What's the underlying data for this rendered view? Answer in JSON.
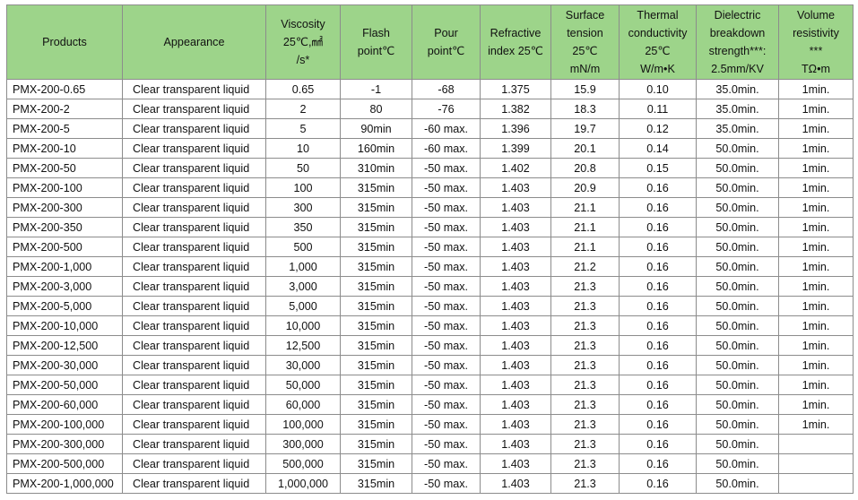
{
  "header_bg": "#9dd48a",
  "columns": [
    {
      "key": "products",
      "lines": [
        "Products"
      ]
    },
    {
      "key": "appearance",
      "lines": [
        "Appearance"
      ]
    },
    {
      "key": "viscosity",
      "lines": [
        "Viscosity",
        "25℃,㎟",
        "/s*"
      ]
    },
    {
      "key": "flash",
      "lines": [
        "Flash",
        "point℃"
      ]
    },
    {
      "key": "pour",
      "lines": [
        "Pour",
        "point℃"
      ]
    },
    {
      "key": "refractive",
      "lines": [
        "Refractive",
        "index 25℃"
      ]
    },
    {
      "key": "surface",
      "lines": [
        "Surface",
        "tension",
        "25℃",
        "mN/m"
      ]
    },
    {
      "key": "thermal",
      "lines": [
        "Thermal",
        "conductivity",
        "25℃",
        "W/m•K"
      ]
    },
    {
      "key": "dielectric",
      "lines": [
        "Dielectric",
        "breakdown",
        "strength***:",
        "2.5mm/KV"
      ]
    },
    {
      "key": "volume",
      "lines": [
        "Volume",
        "resistivity",
        "***",
        "TΩ•m"
      ]
    }
  ],
  "rows": [
    [
      "PMX-200-0.65",
      "Clear transparent liquid",
      "0.65",
      "-1",
      "-68",
      "1.375",
      "15.9",
      "0.10",
      "35.0min.",
      "1min."
    ],
    [
      "PMX-200-2",
      "Clear transparent liquid",
      "2",
      "80",
      "-76",
      "1.382",
      "18.3",
      "0.11",
      "35.0min.",
      "1min."
    ],
    [
      "PMX-200-5",
      "Clear transparent liquid",
      "5",
      "90min",
      "-60 max.",
      "1.396",
      "19.7",
      "0.12",
      "35.0min.",
      "1min."
    ],
    [
      "PMX-200-10",
      "Clear transparent liquid",
      "10",
      "160min",
      "-60 max.",
      "1.399",
      "20.1",
      "0.14",
      "50.0min.",
      "1min."
    ],
    [
      "PMX-200-50",
      "Clear transparent liquid",
      "50",
      "310min",
      "-50 max.",
      "1.402",
      "20.8",
      "0.15",
      "50.0min.",
      "1min."
    ],
    [
      "PMX-200-100",
      "Clear transparent liquid",
      "100",
      "315min",
      "-50 max.",
      "1.403",
      "20.9",
      "0.16",
      "50.0min.",
      "1min."
    ],
    [
      "PMX-200-300",
      "Clear transparent liquid",
      "300",
      "315min",
      "-50 max.",
      "1.403",
      "21.1",
      "0.16",
      "50.0min.",
      "1min."
    ],
    [
      "PMX-200-350",
      "Clear transparent liquid",
      "350",
      "315min",
      "-50 max.",
      "1.403",
      "21.1",
      "0.16",
      "50.0min.",
      "1min."
    ],
    [
      "PMX-200-500",
      "Clear transparent liquid",
      "500",
      "315min",
      "-50 max.",
      "1.403",
      "21.1",
      "0.16",
      "50.0min.",
      "1min."
    ],
    [
      "PMX-200-1,000",
      "Clear transparent liquid",
      "1,000",
      "315min",
      "-50 max.",
      "1.403",
      "21.2",
      "0.16",
      "50.0min.",
      "1min."
    ],
    [
      "PMX-200-3,000",
      "Clear transparent liquid",
      "3,000",
      "315min",
      "-50 max.",
      "1.403",
      "21.3",
      "0.16",
      "50.0min.",
      "1min."
    ],
    [
      "PMX-200-5,000",
      "Clear transparent liquid",
      "5,000",
      "315min",
      "-50 max.",
      "1.403",
      "21.3",
      "0.16",
      "50.0min.",
      "1min."
    ],
    [
      "PMX-200-10,000",
      "Clear transparent liquid",
      "10,000",
      "315min",
      "-50 max.",
      "1.403",
      "21.3",
      "0.16",
      "50.0min.",
      "1min."
    ],
    [
      "PMX-200-12,500",
      "Clear transparent liquid",
      "12,500",
      "315min",
      "-50 max.",
      "1.403",
      "21.3",
      "0.16",
      "50.0min.",
      "1min."
    ],
    [
      "PMX-200-30,000",
      "Clear transparent liquid",
      "30,000",
      "315min",
      "-50 max.",
      "1.403",
      "21.3",
      "0.16",
      "50.0min.",
      "1min."
    ],
    [
      "PMX-200-50,000",
      "Clear transparent liquid",
      "50,000",
      "315min",
      "-50 max.",
      "1.403",
      "21.3",
      "0.16",
      "50.0min.",
      "1min."
    ],
    [
      "PMX-200-60,000",
      "Clear transparent liquid",
      "60,000",
      "315min",
      "-50 max.",
      "1.403",
      "21.3",
      "0.16",
      "50.0min.",
      "1min."
    ],
    [
      "PMX-200-100,000",
      "Clear transparent liquid",
      "100,000",
      "315min",
      "-50 max.",
      "1.403",
      "21.3",
      "0.16",
      "50.0min.",
      "1min."
    ],
    [
      "PMX-200-300,000",
      "Clear transparent liquid",
      "300,000",
      "315min",
      "-50 max.",
      "1.403",
      "21.3",
      "0.16",
      "50.0min.",
      ""
    ],
    [
      "PMX-200-500,000",
      "Clear transparent liquid",
      "500,000",
      "315min",
      "-50 max.",
      "1.403",
      "21.3",
      "0.16",
      "50.0min.",
      ""
    ],
    [
      "PMX-200-1,000,000",
      "Clear transparent liquid",
      "1,000,000",
      "315min",
      "-50 max.",
      "1.403",
      "21.3",
      "0.16",
      "50.0min.",
      ""
    ]
  ]
}
